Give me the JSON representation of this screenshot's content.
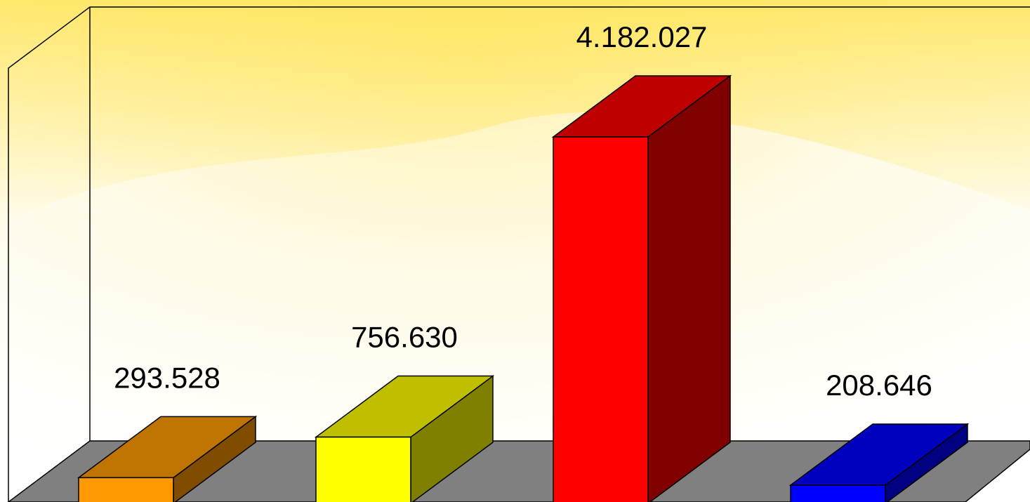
{
  "chart_data": {
    "type": "bar3d",
    "categories": [
      null,
      null,
      null,
      null
    ],
    "values": [
      293528,
      756630,
      4182027,
      208646
    ],
    "value_labels": [
      "293.528",
      "756.630",
      "4.182.027",
      "208.646"
    ],
    "colors": [
      "#ff9900",
      "#ffff00",
      "#ff0000",
      "#0000ff"
    ]
  }
}
